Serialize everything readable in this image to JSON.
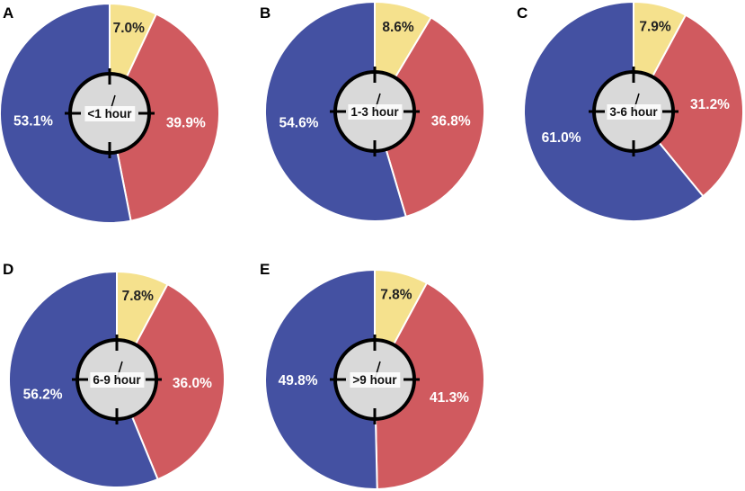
{
  "colors": {
    "series_yellow": "#F5E18D",
    "series_red": "#D05A5F",
    "series_blue": "#4451A2",
    "clock_face": "#D9D9D9",
    "text_light": "#FFFFFF",
    "text_dark": "#222222"
  },
  "chart_data": [
    {
      "type": "pie",
      "panel": "A",
      "center_label": "<1 hour",
      "slices": [
        {
          "series": "yellow",
          "value": 7.0,
          "label": "7.0%"
        },
        {
          "series": "red",
          "value": 39.9,
          "label": "39.9%"
        },
        {
          "series": "blue",
          "value": 53.1,
          "label": "53.1%"
        }
      ]
    },
    {
      "type": "pie",
      "panel": "B",
      "center_label": "1-3 hour",
      "slices": [
        {
          "series": "yellow",
          "value": 8.6,
          "label": "8.6%"
        },
        {
          "series": "red",
          "value": 36.8,
          "label": "36.8%"
        },
        {
          "series": "blue",
          "value": 54.6,
          "label": "54.6%"
        }
      ]
    },
    {
      "type": "pie",
      "panel": "C",
      "center_label": "3-6 hour",
      "slices": [
        {
          "series": "yellow",
          "value": 7.9,
          "label": "7.9%"
        },
        {
          "series": "red",
          "value": 31.2,
          "label": "31.2%"
        },
        {
          "series": "blue",
          "value": 61.0,
          "label": "61.0%"
        }
      ]
    },
    {
      "type": "pie",
      "panel": "D",
      "center_label": "6-9 hour",
      "slices": [
        {
          "series": "yellow",
          "value": 7.8,
          "label": "7.8%"
        },
        {
          "series": "red",
          "value": 36.0,
          "label": "36.0%"
        },
        {
          "series": "blue",
          "value": 56.2,
          "label": "56.2%"
        }
      ]
    },
    {
      "type": "pie",
      "panel": "E",
      "center_label": ">9 hour",
      "slices": [
        {
          "series": "yellow",
          "value": 7.8,
          "label": "7.8%"
        },
        {
          "series": "red",
          "value": 41.3,
          "label": "41.3%"
        },
        {
          "series": "blue",
          "value": 49.8,
          "label": "49.8%"
        }
      ]
    }
  ]
}
